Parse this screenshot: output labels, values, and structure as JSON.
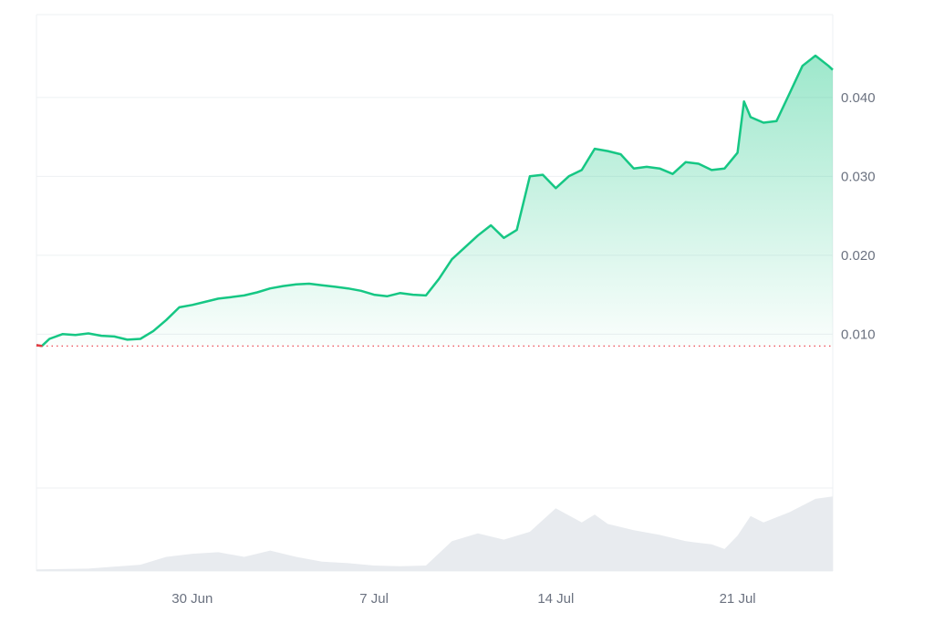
{
  "chart_data": {
    "type": "area",
    "y_ticks": [
      {
        "value": 0.01,
        "label": "0.010"
      },
      {
        "value": 0.02,
        "label": "0.020"
      },
      {
        "value": 0.03,
        "label": "0.030"
      },
      {
        "value": 0.04,
        "label": "0.040"
      }
    ],
    "x_ticks": [
      {
        "value": "2024-06-30",
        "label": "30 Jun"
      },
      {
        "value": "2024-07-07",
        "label": "7 Jul"
      },
      {
        "value": "2024-07-14",
        "label": "14 Jul"
      },
      {
        "value": "2024-07-21",
        "label": "21 Jul"
      }
    ],
    "x_range": [
      "2024-06-24T00:00",
      "2024-07-24T16:00"
    ],
    "ylim": [
      -0.0095,
      0.0505
    ],
    "reference_value": 0.0085,
    "grid": true,
    "colors": {
      "line_up": "#16c784",
      "line_down": "#ea3943",
      "reference_line": "#ea3943",
      "volume": "#e8ebef",
      "grid": "#eef0f3"
    },
    "series": [
      {
        "points": [
          [
            "2024-06-24T00:00",
            0.0086
          ],
          [
            "2024-06-24T05:00",
            0.0085
          ],
          [
            "2024-06-24T12:00",
            0.0094
          ],
          [
            "2024-06-25T00:00",
            0.01
          ],
          [
            "2024-06-25T12:00",
            0.0099
          ],
          [
            "2024-06-26T00:00",
            0.0101
          ],
          [
            "2024-06-26T12:00",
            0.0098
          ],
          [
            "2024-06-27T00:00",
            0.0097
          ],
          [
            "2024-06-27T12:00",
            0.0093
          ],
          [
            "2024-06-28T00:00",
            0.0094
          ],
          [
            "2024-06-28T12:00",
            0.0104
          ],
          [
            "2024-06-29T00:00",
            0.0118
          ],
          [
            "2024-06-29T12:00",
            0.0134
          ],
          [
            "2024-06-30T00:00",
            0.0137
          ],
          [
            "2024-06-30T12:00",
            0.0141
          ],
          [
            "2024-07-01T00:00",
            0.0145
          ],
          [
            "2024-07-01T12:00",
            0.0147
          ],
          [
            "2024-07-02T00:00",
            0.0149
          ],
          [
            "2024-07-02T12:00",
            0.0153
          ],
          [
            "2024-07-03T00:00",
            0.0158
          ],
          [
            "2024-07-03T12:00",
            0.0161
          ],
          [
            "2024-07-04T00:00",
            0.0163
          ],
          [
            "2024-07-04T12:00",
            0.0164
          ],
          [
            "2024-07-05T00:00",
            0.0162
          ],
          [
            "2024-07-05T12:00",
            0.016
          ],
          [
            "2024-07-06T00:00",
            0.0158
          ],
          [
            "2024-07-06T12:00",
            0.0155
          ],
          [
            "2024-07-07T00:00",
            0.015
          ],
          [
            "2024-07-07T12:00",
            0.0148
          ],
          [
            "2024-07-08T00:00",
            0.0152
          ],
          [
            "2024-07-08T12:00",
            0.015
          ],
          [
            "2024-07-09T00:00",
            0.0149
          ],
          [
            "2024-07-09T12:00",
            0.017
          ],
          [
            "2024-07-10T00:00",
            0.0195
          ],
          [
            "2024-07-10T12:00",
            0.021
          ],
          [
            "2024-07-11T00:00",
            0.0225
          ],
          [
            "2024-07-11T12:00",
            0.0238
          ],
          [
            "2024-07-12T00:00",
            0.0222
          ],
          [
            "2024-07-12T12:00",
            0.0232
          ],
          [
            "2024-07-13T00:00",
            0.03
          ],
          [
            "2024-07-13T12:00",
            0.0302
          ],
          [
            "2024-07-14T00:00",
            0.0285
          ],
          [
            "2024-07-14T12:00",
            0.03
          ],
          [
            "2024-07-15T00:00",
            0.0308
          ],
          [
            "2024-07-15T12:00",
            0.0335
          ],
          [
            "2024-07-16T00:00",
            0.0332
          ],
          [
            "2024-07-16T12:00",
            0.0328
          ],
          [
            "2024-07-17T00:00",
            0.031
          ],
          [
            "2024-07-17T12:00",
            0.0312
          ],
          [
            "2024-07-18T00:00",
            0.031
          ],
          [
            "2024-07-18T12:00",
            0.0303
          ],
          [
            "2024-07-19T00:00",
            0.0318
          ],
          [
            "2024-07-19T12:00",
            0.0316
          ],
          [
            "2024-07-20T00:00",
            0.0308
          ],
          [
            "2024-07-20T12:00",
            0.031
          ],
          [
            "2024-07-21T00:00",
            0.033
          ],
          [
            "2024-07-21T06:00",
            0.0395
          ],
          [
            "2024-07-21T12:00",
            0.0375
          ],
          [
            "2024-07-22T00:00",
            0.0368
          ],
          [
            "2024-07-22T12:00",
            0.037
          ],
          [
            "2024-07-23T00:00",
            0.0405
          ],
          [
            "2024-07-23T12:00",
            0.044
          ],
          [
            "2024-07-24T00:00",
            0.0453
          ],
          [
            "2024-07-24T12:00",
            0.044
          ],
          [
            "2024-07-24T16:00",
            0.0435
          ]
        ]
      }
    ],
    "volume": {
      "points": [
        [
          "2024-06-24T00:00",
          0.02
        ],
        [
          "2024-06-26T00:00",
          0.03
        ],
        [
          "2024-06-28T00:00",
          0.08
        ],
        [
          "2024-06-29T00:00",
          0.18
        ],
        [
          "2024-06-30T00:00",
          0.22
        ],
        [
          "2024-07-01T00:00",
          0.24
        ],
        [
          "2024-07-02T00:00",
          0.18
        ],
        [
          "2024-07-03T00:00",
          0.26
        ],
        [
          "2024-07-04T00:00",
          0.18
        ],
        [
          "2024-07-05T00:00",
          0.12
        ],
        [
          "2024-07-06T00:00",
          0.1
        ],
        [
          "2024-07-07T00:00",
          0.07
        ],
        [
          "2024-07-08T00:00",
          0.06
        ],
        [
          "2024-07-09T00:00",
          0.07
        ],
        [
          "2024-07-10T00:00",
          0.38
        ],
        [
          "2024-07-11T00:00",
          0.48
        ],
        [
          "2024-07-12T00:00",
          0.4
        ],
        [
          "2024-07-13T00:00",
          0.5
        ],
        [
          "2024-07-13T12:00",
          0.65
        ],
        [
          "2024-07-14T00:00",
          0.8
        ],
        [
          "2024-07-15T00:00",
          0.62
        ],
        [
          "2024-07-15T12:00",
          0.72
        ],
        [
          "2024-07-16T00:00",
          0.6
        ],
        [
          "2024-07-17T00:00",
          0.52
        ],
        [
          "2024-07-18T00:00",
          0.46
        ],
        [
          "2024-07-19T00:00",
          0.38
        ],
        [
          "2024-07-20T00:00",
          0.34
        ],
        [
          "2024-07-20T12:00",
          0.28
        ],
        [
          "2024-07-21T00:00",
          0.45
        ],
        [
          "2024-07-21T12:00",
          0.7
        ],
        [
          "2024-07-22T00:00",
          0.62
        ],
        [
          "2024-07-23T00:00",
          0.75
        ],
        [
          "2024-07-24T00:00",
          0.92
        ],
        [
          "2024-07-24T16:00",
          0.95
        ]
      ]
    }
  }
}
